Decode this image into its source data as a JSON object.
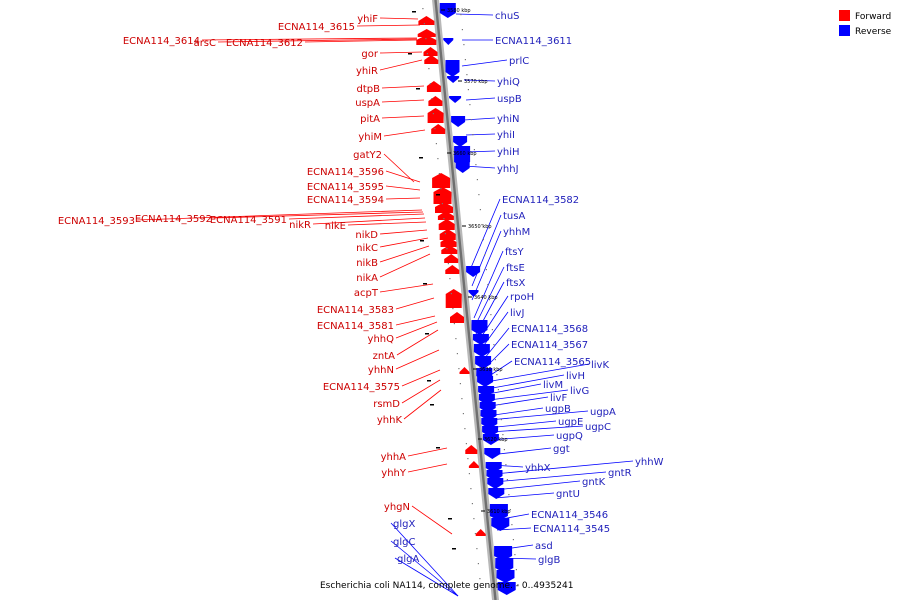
{
  "caption": "Escherichia coli NA114, complete genome. - 0..4935241",
  "legend": [
    {
      "label": "Forward",
      "color": "#ff0000"
    },
    {
      "label": "Reverse",
      "color": "#0000ff"
    }
  ],
  "ticks": [
    "3580 kbp",
    "3570 kbp",
    "3660 kbp",
    "3650 kbp",
    "3640 kbp",
    "3630 kbp",
    "3620 kbp",
    "3610 kbp"
  ],
  "forward_genes": [
    "yhiF",
    "ECNA114_3615",
    "ECNA114_3614",
    "arsC",
    "ECNA114_3612",
    "gor",
    "yhiR",
    "dtpB",
    "uspA",
    "pitA",
    "yhiM",
    "gatY2",
    "ECNA114_3596",
    "ECNA114_3595",
    "ECNA114_3594",
    "ECNA114_3593",
    "ECNA114_3592",
    "ECNA114_3591",
    "nikR",
    "nikE",
    "nikD",
    "nikC",
    "nikB",
    "nikA",
    "acpT",
    "ECNA114_3583",
    "ECNA114_3581",
    "yhhQ",
    "zntA",
    "yhhN",
    "ECNA114_3575",
    "rsmD",
    "yhhK",
    "yhhA",
    "yhhY",
    "yhgN"
  ],
  "reverse_genes": [
    "chuS",
    "ECNA114_3611",
    "prlC",
    "yhiQ",
    "uspB",
    "yhiN",
    "yhiI",
    "yhiH",
    "yhhJ",
    "ECNA114_3582",
    "tusA",
    "yhhM",
    "ftsY",
    "ftsE",
    "ftsX",
    "rpoH",
    "livJ",
    "ECNA114_3568",
    "ECNA114_3567",
    "ECNA114_3565",
    "livK",
    "livH",
    "livM",
    "livG",
    "livF",
    "ugpB",
    "ugpA",
    "ugpE",
    "ugpC",
    "ugpQ",
    "ggt",
    "yhhX",
    "yhhW",
    "gntR",
    "gntK",
    "gntU",
    "ECNA114_3546",
    "ECNA114_3545",
    "asd",
    "glgB",
    "glgX",
    "glgC",
    "glgA"
  ],
  "colors": {
    "forward": "#ff0000",
    "reverse": "#0000ff",
    "forward_text": "#cc0000",
    "reverse_text": "#2222bb",
    "backbone": "#808080"
  }
}
